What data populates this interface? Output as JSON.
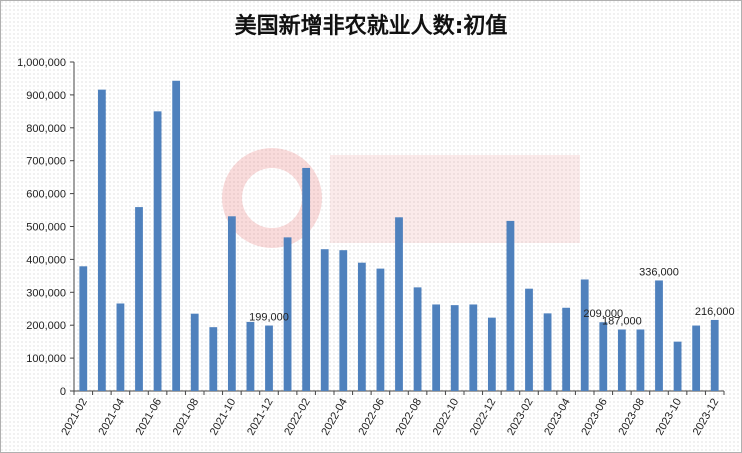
{
  "chart_data": {
    "type": "bar",
    "title": "美国新增非农就业人数:初值",
    "xlabel": "",
    "ylabel": "",
    "ylim": [
      0,
      1000000
    ],
    "y_ticks": [
      "0",
      "100,000",
      "200,000",
      "300,000",
      "400,000",
      "500,000",
      "600,000",
      "700,000",
      "800,000",
      "900,000",
      "1,000,000"
    ],
    "x_tick_labels": [
      "2021-02",
      "2021-04",
      "2021-06",
      "2021-08",
      "2021-10",
      "2021-12",
      "2022-02",
      "2022-04",
      "2022-06",
      "2022-08",
      "2022-10",
      "2022-12",
      "2023-02",
      "2023-04",
      "2023-06",
      "2023-08",
      "2023-10",
      "2023-12"
    ],
    "categories": [
      "2021-02",
      "2021-03",
      "2021-04",
      "2021-05",
      "2021-06",
      "2021-07",
      "2021-08",
      "2021-09",
      "2021-10",
      "2021-11",
      "2021-12",
      "2022-01",
      "2022-02",
      "2022-03",
      "2022-04",
      "2022-05",
      "2022-06",
      "2022-07",
      "2022-08",
      "2022-09",
      "2022-10",
      "2022-11",
      "2022-12",
      "2023-01",
      "2023-02",
      "2023-03",
      "2023-04",
      "2023-05",
      "2023-06",
      "2023-07",
      "2023-08",
      "2023-09",
      "2023-10",
      "2023-11",
      "2023-12"
    ],
    "values": [
      379000,
      916000,
      266000,
      559000,
      850000,
      943000,
      235000,
      194000,
      531000,
      210000,
      199000,
      467000,
      678000,
      431000,
      428000,
      390000,
      372000,
      528000,
      315000,
      263000,
      261000,
      263000,
      223000,
      517000,
      311000,
      236000,
      253000,
      339000,
      209000,
      187000,
      187000,
      336000,
      150000,
      199000,
      216000
    ],
    "data_labels": [
      {
        "category": "2021-12",
        "text": "199,000"
      },
      {
        "category": "2023-06",
        "text": "209,000"
      },
      {
        "category": "2023-07",
        "text": "187,000"
      },
      {
        "category": "2023-09",
        "text": "336,000"
      },
      {
        "category": "2023-12",
        "text": "216,000"
      }
    ],
    "bar_color": "#4f81bd",
    "grid": false,
    "legend": "none"
  }
}
